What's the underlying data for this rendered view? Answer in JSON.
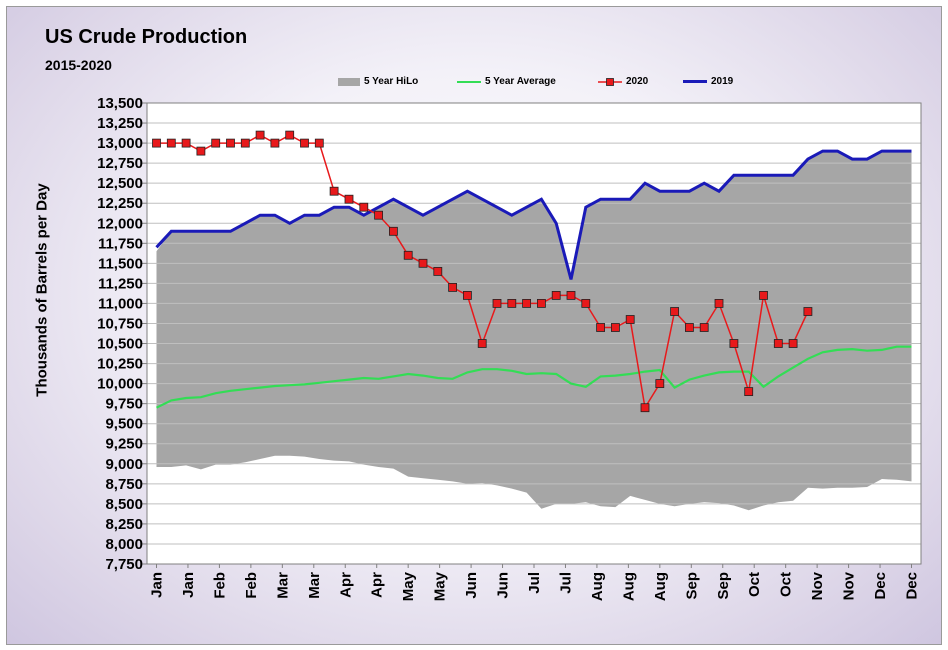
{
  "chart_data": {
    "type": "area",
    "title": "US Crude Production",
    "subtitle": "2015-2020",
    "xlabel": "",
    "ylabel": "Thousands of Barrels per Day",
    "ylim": [
      7750,
      13500
    ],
    "y_ticks": [
      "13,500",
      "13,250",
      "13,000",
      "12,750",
      "12,500",
      "12,250",
      "12,000",
      "11,750",
      "11,500",
      "11,250",
      "11,000",
      "10,750",
      "10,500",
      "10,250",
      "10,000",
      "9,750",
      "9,500",
      "9,250",
      "9,000",
      "8,750",
      "8,500",
      "8,250",
      "8,000",
      "7,750"
    ],
    "x_tick_labels": [
      "Jan",
      "Jan",
      "Feb",
      "Feb",
      "Mar",
      "Mar",
      "Apr",
      "Apr",
      "May",
      "May",
      "Jun",
      "Jun",
      "Jul",
      "Jul",
      "Aug",
      "Aug",
      "Aug",
      "Sep",
      "Sep",
      "Oct",
      "Oct",
      "Nov",
      "Nov",
      "Dec",
      "Dec"
    ],
    "grid": true,
    "legend_position": "top",
    "series": [
      {
        "name": "5 Year HiLo",
        "type": "band",
        "color": "#a6a6a6",
        "high": [
          11650,
          11900,
          11900,
          11900,
          11900,
          11900,
          12000,
          12100,
          12100,
          12000,
          12100,
          12100,
          12200,
          12200,
          12100,
          12200,
          12300,
          12200,
          12100,
          12200,
          12300,
          12400,
          12300,
          12200,
          12100,
          12200,
          12300,
          12000,
          11350,
          12200,
          12300,
          12300,
          12300,
          12500,
          12400,
          12400,
          12400,
          12500,
          12400,
          12600,
          12600,
          12600,
          12600,
          12600,
          12800,
          12900,
          12900,
          12800,
          12800,
          12900,
          12900,
          12900
        ],
        "low": [
          8960,
          8960,
          8980,
          8930,
          8990,
          8990,
          9020,
          9060,
          9100,
          9100,
          9090,
          9060,
          9040,
          9030,
          8990,
          8960,
          8940,
          8840,
          8820,
          8800,
          8780,
          8750,
          8760,
          8730,
          8690,
          8640,
          8440,
          8500,
          8500,
          8520,
          8470,
          8460,
          8600,
          8550,
          8500,
          8470,
          8500,
          8520,
          8510,
          8480,
          8420,
          8480,
          8520,
          8540,
          8700,
          8690,
          8700,
          8700,
          8710,
          8810,
          8800,
          8780
        ]
      },
      {
        "name": "5 Year Average",
        "type": "line",
        "color": "#33dd55",
        "values": [
          9700,
          9790,
          9820,
          9830,
          9880,
          9910,
          9930,
          9950,
          9970,
          9980,
          9990,
          10010,
          10030,
          10050,
          10070,
          10060,
          10090,
          10120,
          10100,
          10070,
          10060,
          10140,
          10180,
          10180,
          10160,
          10120,
          10130,
          10120,
          10000,
          9960,
          10090,
          10100,
          10120,
          10150,
          10170,
          9950,
          10050,
          10100,
          10140,
          10150,
          10150,
          9960,
          10090,
          10200,
          10310,
          10390,
          10420,
          10430,
          10410,
          10420,
          10460,
          10460
        ]
      },
      {
        "name": "2020",
        "type": "line-markers",
        "color": "#e8191b",
        "values": [
          13000,
          13000,
          13000,
          12900,
          13000,
          13000,
          13000,
          13100,
          13000,
          13100,
          13000,
          13000,
          12400,
          12300,
          12200,
          12100,
          11900,
          11600,
          11500,
          11400,
          11200,
          11100,
          10500,
          11000,
          11000,
          11000,
          11000,
          11100,
          11100,
          11000,
          10700,
          10700,
          10800,
          9700,
          10000,
          10900,
          10700,
          10700,
          11000,
          10500,
          9900,
          11100,
          10500,
          10500,
          10900
        ]
      },
      {
        "name": "2019",
        "type": "line",
        "color": "#1a1ab8",
        "values": [
          11700,
          11900,
          11900,
          11900,
          11900,
          11900,
          12000,
          12100,
          12100,
          12000,
          12100,
          12100,
          12200,
          12200,
          12100,
          12200,
          12300,
          12200,
          12100,
          12200,
          12300,
          12400,
          12300,
          12200,
          12100,
          12200,
          12300,
          12000,
          11300,
          12200,
          12300,
          12300,
          12300,
          12500,
          12400,
          12400,
          12400,
          12500,
          12400,
          12600,
          12600,
          12600,
          12600,
          12600,
          12800,
          12900,
          12900,
          12800,
          12800,
          12900,
          12900,
          12900
        ]
      }
    ]
  }
}
